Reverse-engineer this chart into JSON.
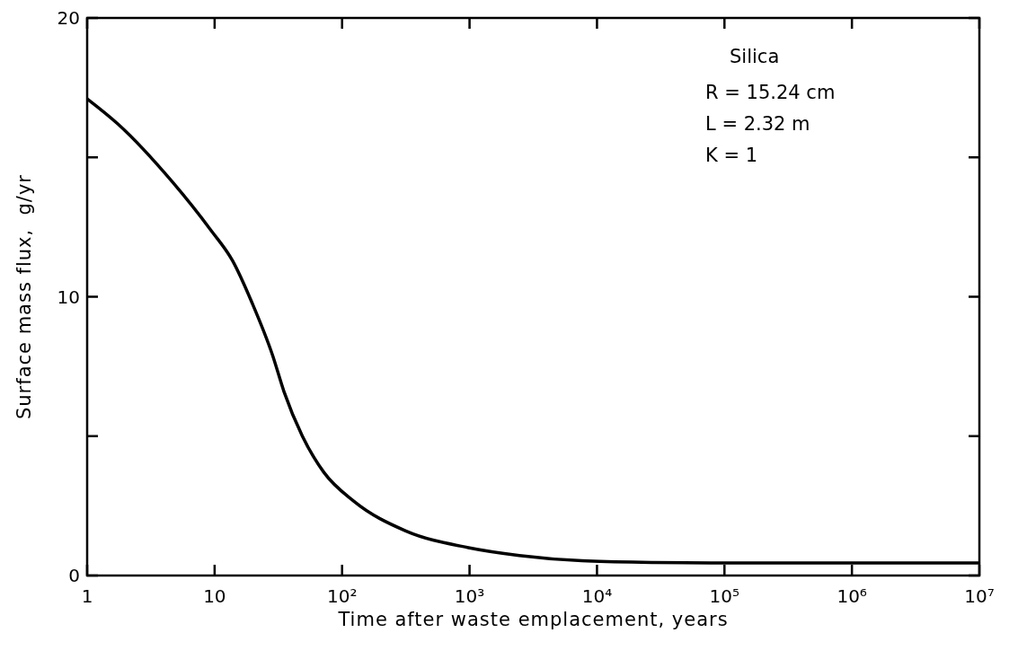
{
  "chart_data": {
    "type": "line",
    "xlabel": "Time after waste emplacement, years",
    "ylabel": "Surface mass flux,  g/yr",
    "log": "x",
    "xlim": [
      1,
      10000000
    ],
    "xticks": [
      1,
      {
        "value": 10,
        "label": "10"
      },
      {
        "value": 100,
        "label": "10²"
      },
      {
        "value": 1000,
        "label": "10³"
      },
      {
        "value": 10000,
        "label": "10⁴"
      },
      {
        "value": 100000,
        "label": "10⁵"
      },
      {
        "value": 1000000,
        "label": "10⁶"
      },
      {
        "value": 10000000,
        "label": "10⁷"
      }
    ],
    "ylim": [
      0,
      20
    ],
    "yticks": [
      0,
      {
        "value": 5,
        "label": null
      },
      10,
      {
        "value": 15,
        "label": null
      },
      20
    ],
    "annotations": [
      "Silica",
      "R = 15.24 cm",
      "L = 2.32 m",
      "K = 1"
    ],
    "series": [
      {
        "color": "#000000",
        "x": [
          1,
          1.74,
          4.7,
          9.3,
          13.8,
          19.8,
          28.5,
          35,
          48.8,
          72,
          124,
          316,
          980,
          2460,
          7600,
          28000,
          100000,
          1000000,
          10000000
        ],
        "values": [
          17.1,
          16.2,
          14.1,
          12.4,
          11.3,
          9.75,
          7.9,
          6.6,
          5.0,
          3.7,
          2.66,
          1.6,
          1.0,
          0.72,
          0.53,
          0.47,
          0.45,
          0.45,
          0.45
        ]
      }
    ]
  }
}
